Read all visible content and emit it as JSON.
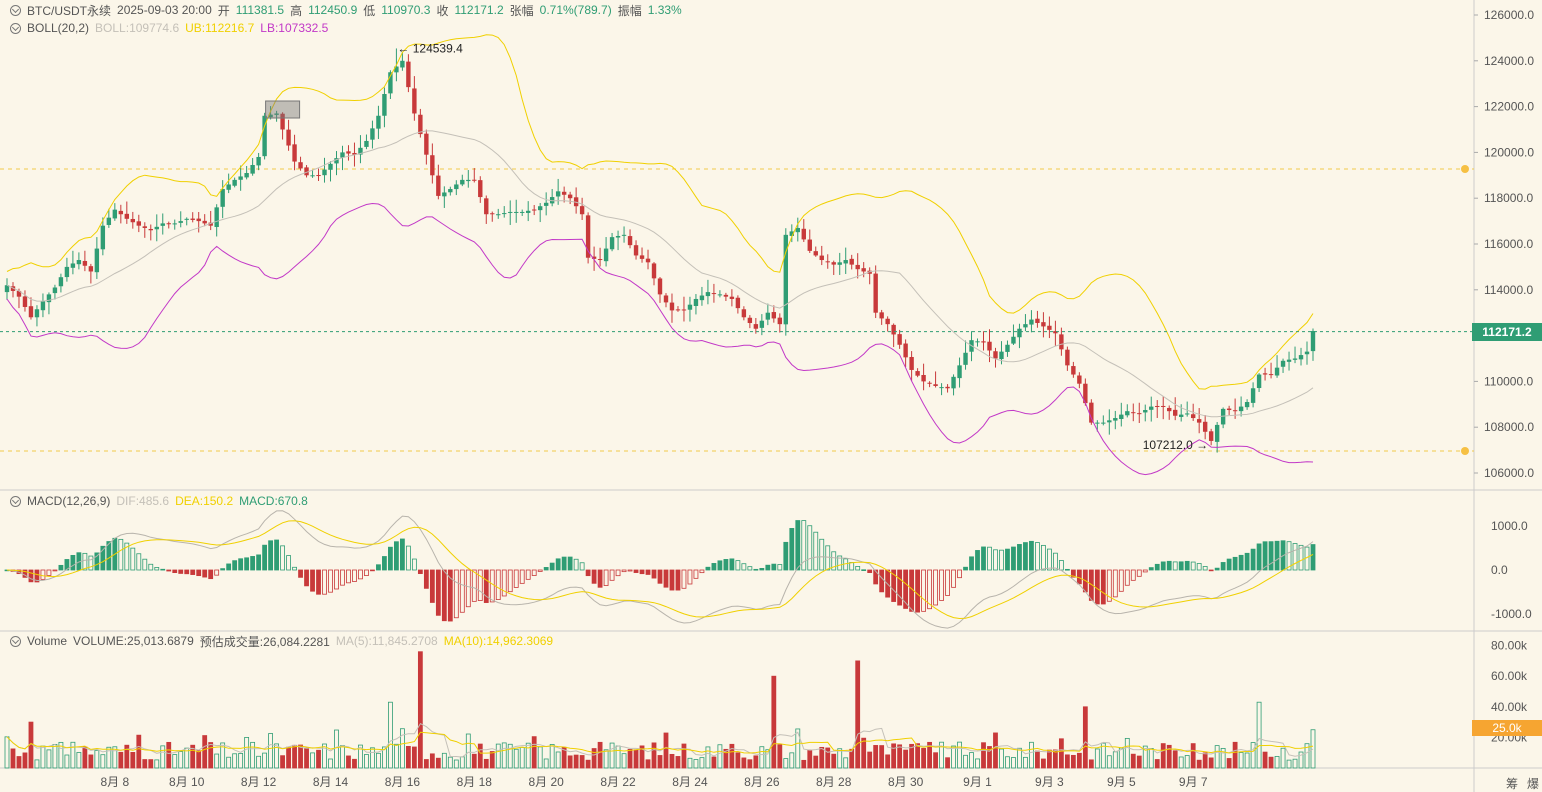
{
  "header": {
    "symbol": "BTC/USDT永续",
    "datetime": "2025-09-03 20:00",
    "open_label": "开",
    "open": "111381.5",
    "high_label": "高",
    "high": "112450.9",
    "low_label": "低",
    "low": "110970.3",
    "close_label": "收",
    "close": "112171.2",
    "change_label": "张幅",
    "change": "0.71%(789.7)",
    "amp_label": "振幅",
    "amp": "1.33%"
  },
  "boll": {
    "label": "BOLL(20,2)",
    "boll": "BOLL:109774.6",
    "ub": "UB:112216.7",
    "lb": "LB:107332.5"
  },
  "macd": {
    "label": "MACD(12,26,9)",
    "dif": "DIF:485.6",
    "dea": "DEA:150.2",
    "macd": "MACD:670.8"
  },
  "volume": {
    "label": "Volume",
    "vol": "VOLUME:25,013.6879",
    "est": "预估成交量:26,084.2281",
    "ma5": "MA(5):11,845.2708",
    "ma10": "MA(10):14,962.3069"
  },
  "last_price": "112171.2",
  "last_volume": "25.0k",
  "annotations": {
    "high": "124539.4",
    "low": "107212.0"
  },
  "bottom_right": [
    "筹",
    "爆"
  ],
  "colors": {
    "up": "#2f9d74",
    "down": "#c8393a",
    "ub": "#f0d000",
    "lb": "#c238c7",
    "mid": "#c4c0b8",
    "background": "#fbf6e9"
  },
  "icons": [
    "collapse-circle-icon",
    "bell-icon"
  ],
  "chart_data": {
    "type": "candlestick",
    "interval": "4h",
    "price_axis": {
      "ticks": [
        "126000.0",
        "124000.0",
        "122000.0",
        "120000.0",
        "118000.0",
        "116000.0",
        "114000.0",
        "112000.0",
        "110000.0",
        "108000.0",
        "106000.0"
      ]
    },
    "macd_axis": {
      "ticks": [
        "1000.0",
        "0.0",
        "-1000.0"
      ]
    },
    "volume_axis": {
      "ticks": [
        "80.00k",
        "60.00k",
        "40.00k",
        "20.00k"
      ]
    },
    "x_labels": [
      "8月 8",
      "8月 10",
      "8月 12",
      "8月 14",
      "8月 16",
      "8月 18",
      "8月 20",
      "8月 22",
      "8月 24",
      "8月 26",
      "8月 28",
      "8月 30",
      "9月 1",
      "9月 3",
      "9月 5",
      "9月 7"
    ],
    "waypoints": [
      [
        0,
        114200
      ],
      [
        2,
        113700
      ],
      [
        4,
        112800
      ],
      [
        6,
        113500
      ],
      [
        8,
        114100
      ],
      [
        10,
        115000
      ],
      [
        12,
        115300
      ],
      [
        14,
        114800
      ],
      [
        16,
        116800
      ],
      [
        18,
        117500
      ],
      [
        20,
        117100
      ],
      [
        22,
        116800
      ],
      [
        24,
        116600
      ],
      [
        26,
        116900
      ],
      [
        28,
        116900
      ],
      [
        30,
        117100
      ],
      [
        32,
        117000
      ],
      [
        34,
        116800
      ],
      [
        36,
        118400
      ],
      [
        38,
        118800
      ],
      [
        40,
        119100
      ],
      [
        42,
        119800
      ],
      [
        43,
        121600
      ],
      [
        45,
        121700
      ],
      [
        46,
        121000
      ],
      [
        48,
        119600
      ],
      [
        50,
        119000
      ],
      [
        52,
        119000
      ],
      [
        54,
        119500
      ],
      [
        56,
        120000
      ],
      [
        58,
        119900
      ],
      [
        60,
        120500
      ],
      [
        62,
        121600
      ],
      [
        64,
        123500
      ],
      [
        66,
        124000
      ],
      [
        68,
        121700
      ],
      [
        70,
        119900
      ],
      [
        72,
        118100
      ],
      [
        74,
        118400
      ],
      [
        76,
        118800
      ],
      [
        78,
        118800
      ],
      [
        80,
        117300
      ],
      [
        82,
        117300
      ],
      [
        84,
        117400
      ],
      [
        86,
        117400
      ],
      [
        88,
        117500
      ],
      [
        90,
        117800
      ],
      [
        92,
        118300
      ],
      [
        94,
        118000
      ],
      [
        96,
        117300
      ],
      [
        97,
        115400
      ],
      [
        99,
        115300
      ],
      [
        101,
        116300
      ],
      [
        103,
        116400
      ],
      [
        105,
        115500
      ],
      [
        107,
        115200
      ],
      [
        109,
        113800
      ],
      [
        111,
        113100
      ],
      [
        113,
        113100
      ],
      [
        115,
        113600
      ],
      [
        117,
        113900
      ],
      [
        119,
        113800
      ],
      [
        121,
        113600
      ],
      [
        123,
        112800
      ],
      [
        125,
        112300
      ],
      [
        127,
        113000
      ],
      [
        129,
        112500
      ],
      [
        130,
        116400
      ],
      [
        132,
        116700
      ],
      [
        134,
        115700
      ],
      [
        136,
        115300
      ],
      [
        138,
        115100
      ],
      [
        140,
        115300
      ],
      [
        142,
        114900
      ],
      [
        144,
        114700
      ],
      [
        145,
        113000
      ],
      [
        147,
        112500
      ],
      [
        149,
        111600
      ],
      [
        151,
        110500
      ],
      [
        153,
        110000
      ],
      [
        155,
        109800
      ],
      [
        157,
        109700
      ],
      [
        159,
        110700
      ],
      [
        161,
        111800
      ],
      [
        163,
        111700
      ],
      [
        165,
        111000
      ],
      [
        167,
        111600
      ],
      [
        169,
        112300
      ],
      [
        171,
        112700
      ],
      [
        173,
        112400
      ],
      [
        175,
        112100
      ],
      [
        177,
        110700
      ],
      [
        179,
        109900
      ],
      [
        181,
        108200
      ],
      [
        183,
        108200
      ],
      [
        185,
        108400
      ],
      [
        187,
        108700
      ],
      [
        189,
        108600
      ],
      [
        191,
        108900
      ],
      [
        193,
        108900
      ],
      [
        195,
        108500
      ],
      [
        197,
        108600
      ],
      [
        199,
        108200
      ],
      [
        201,
        107400
      ],
      [
        203,
        108800
      ],
      [
        205,
        108700
      ],
      [
        207,
        109100
      ],
      [
        209,
        110300
      ],
      [
        211,
        110300
      ],
      [
        213,
        110900
      ],
      [
        215,
        111000
      ],
      [
        217,
        111300
      ],
      [
        218,
        112200
      ]
    ]
  }
}
